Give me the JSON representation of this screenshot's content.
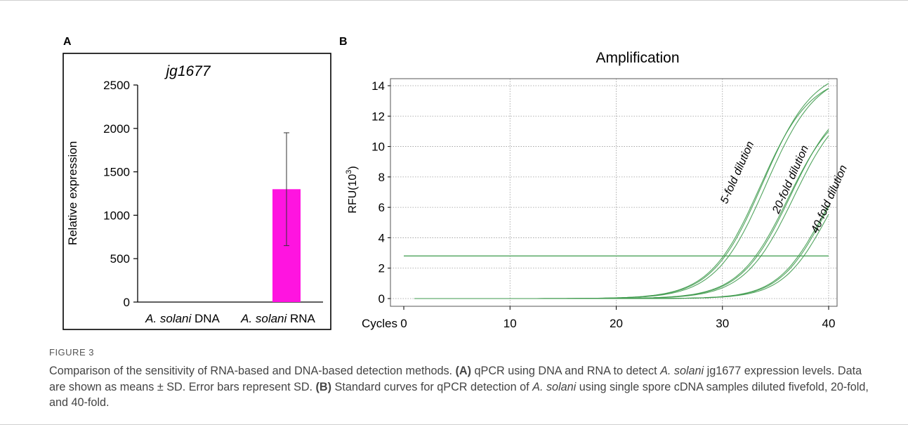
{
  "panel_labels": {
    "a": "A",
    "b": "B"
  },
  "chart_data": [
    {
      "type": "bar",
      "title": "jg1677",
      "ylabel": "Relative expression",
      "xlabel": "",
      "categories": [
        {
          "italic": "A. solani",
          "rest": " DNA"
        },
        {
          "italic": "A. solani",
          "rest": " RNA"
        }
      ],
      "values": [
        0,
        1300
      ],
      "error_sd": [
        0,
        650
      ],
      "ylim": [
        0,
        2500
      ],
      "yticks": [
        0,
        500,
        1000,
        1500,
        2000,
        2500
      ],
      "bar_color": "#ff14e0",
      "grid": false
    },
    {
      "type": "line",
      "title": "Amplification",
      "xlabel": "Cycles",
      "ylabel": "RFU(10",
      "ylabel_sup": "3",
      "ylabel_close": ")",
      "xlim": [
        0,
        40
      ],
      "ylim": [
        0,
        14
      ],
      "xticks": [
        0,
        10,
        20,
        30,
        40
      ],
      "yticks": [
        0,
        2,
        4,
        6,
        8,
        10,
        12,
        14
      ],
      "grid": true,
      "line_color": "#3e9a4c",
      "threshold": 2.8,
      "series": [
        {
          "name": "5-fold dilution",
          "midpoint": 33.8,
          "plateau": 15.2,
          "steepness": 0.42,
          "replicates": 3
        },
        {
          "name": "20-fold dilution",
          "midpoint": 36.4,
          "plateau": 13.5,
          "steepness": 0.43,
          "replicates": 3
        },
        {
          "name": "40-fold dilution",
          "midpoint": 39.6,
          "plateau": 11.0,
          "steepness": 0.47,
          "replicates": 3
        }
      ]
    }
  ],
  "caption": {
    "label": "FIGURE 3",
    "text": "Comparison of the sensitivity of RNA-based and DNA-based detection methods. (A) qPCR using DNA and RNA to detect A. solani jg1677 expression levels. Data are shown as means ± SD. Error bars represent SD. (B) Standard curves for qPCR detection of A. solani using single spore cDNA samples diluted fivefold, 20-fold, and 40-fold."
  }
}
